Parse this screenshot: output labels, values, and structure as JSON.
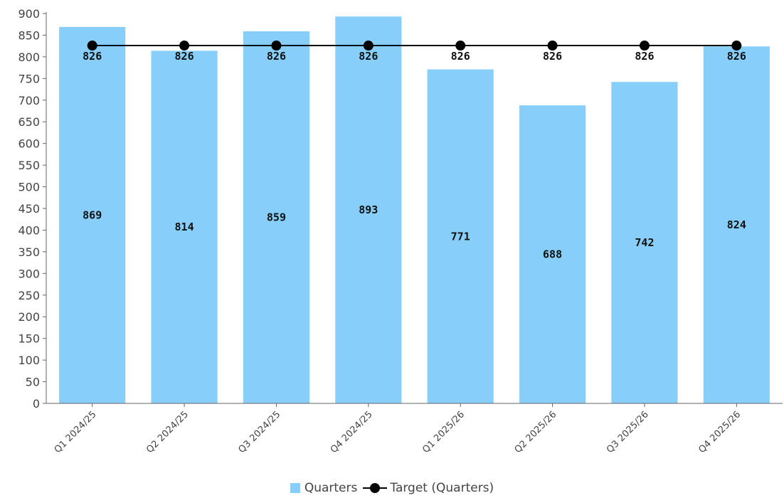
{
  "chart_data": {
    "type": "bar",
    "categories": [
      "Q1 2024/25",
      "Q2 2024/25",
      "Q3 2024/25",
      "Q4 2024/25",
      "Q1 2025/26",
      "Q2 2025/26",
      "Q3 2025/26",
      "Q4 2025/26"
    ],
    "series": [
      {
        "name": "Quarters",
        "kind": "bar",
        "color": "#87cefa",
        "values": [
          869,
          814,
          859,
          893,
          771,
          688,
          742,
          824
        ]
      },
      {
        "name": "Target (Quarters)",
        "kind": "line",
        "color": "#000000",
        "values": [
          826,
          826,
          826,
          826,
          826,
          826,
          826,
          826
        ]
      }
    ],
    "ylim": [
      0,
      900
    ],
    "yticks": [
      0,
      50,
      100,
      150,
      200,
      250,
      300,
      350,
      400,
      450,
      500,
      550,
      600,
      650,
      700,
      750,
      800,
      850,
      900
    ],
    "grid": false,
    "legend_position": "bottom-center"
  },
  "legend": {
    "bar_label": "Quarters",
    "line_label": "Target (Quarters)"
  }
}
